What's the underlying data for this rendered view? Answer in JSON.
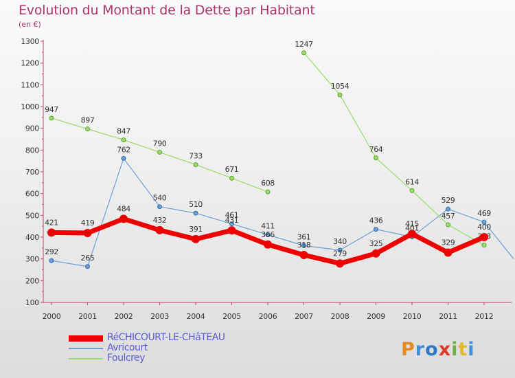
{
  "header": {
    "title": "Evolution du Montant de la Dette par Habitant",
    "subtitle": "(en €)"
  },
  "logo": {
    "text": "Proxiti"
  },
  "chart_data": {
    "type": "line",
    "title": "Evolution du Montant de la Dette par Habitant",
    "subtitle": "(en €)",
    "xlabel": "",
    "ylabel": "",
    "x": [
      "2000",
      "2001",
      "2002",
      "2003",
      "2004",
      "2005",
      "2006",
      "2007",
      "2008",
      "2009",
      "2010",
      "2011",
      "2012"
    ],
    "ylim": [
      100,
      1300
    ],
    "yticks": [
      100,
      200,
      300,
      400,
      500,
      600,
      700,
      800,
      900,
      1000,
      1100,
      1200,
      1300
    ],
    "grid": false,
    "legend_position": "bottom-left",
    "series": [
      {
        "name": "RéCHICOURT-LE-CHâTEAU",
        "color": "#ee0000",
        "values": [
          421,
          419,
          484,
          432,
          391,
          431,
          366,
          318,
          279,
          325,
          415,
          329,
          400
        ],
        "labels": [
          "421",
          "419",
          "484",
          "432",
          "391",
          "431",
          "366",
          "318",
          "279",
          "325",
          "415",
          "329",
          "400"
        ]
      },
      {
        "name": "Avricourt",
        "color": "#6c9fd4",
        "values": [
          292,
          265,
          762,
          540,
          510,
          461,
          411,
          361,
          340,
          436,
          401,
          529,
          469
        ],
        "labels": [
          "292",
          "265",
          "762",
          "540",
          "510",
          "461",
          "411",
          "361",
          "340",
          "436",
          "401",
          "529",
          "469"
        ]
      },
      {
        "name": "Foulcrey",
        "color": "#99dd66",
        "values": [
          947,
          897,
          847,
          790,
          733,
          671,
          608,
          1247,
          1054,
          764,
          614,
          457,
          363
        ],
        "labels": [
          "947",
          "897",
          "847",
          "790",
          "733",
          "671",
          "608",
          "1247",
          "1054",
          "764",
          "614",
          "457",
          "363"
        ],
        "break_after_index": 6
      }
    ]
  }
}
